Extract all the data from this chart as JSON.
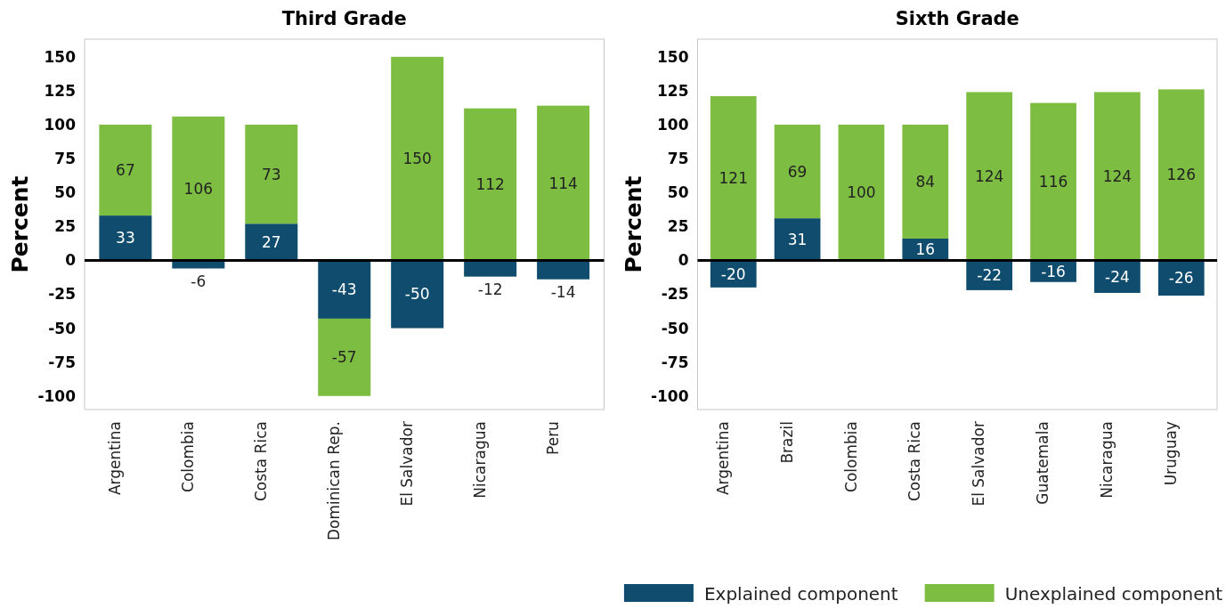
{
  "chart_data": [
    {
      "type": "bar",
      "title": "Third Grade",
      "ylabel": "Percent",
      "stacked": true,
      "data_labels": true,
      "categories": [
        "Argentina",
        "Colombia",
        "Costa Rica",
        "Dominican Rep.",
        "El Salvador",
        "Nicaragua",
        "Peru"
      ],
      "series": [
        {
          "color": "#0f4c6e",
          "values": [
            33,
            -6,
            27,
            -43,
            -50,
            -12,
            -14
          ]
        },
        {
          "color": "#7dbd42",
          "values": [
            67,
            106,
            73,
            -57,
            150,
            112,
            114
          ]
        }
      ],
      "ylim": [
        -110,
        163
      ],
      "yticks": [
        -100,
        -75,
        -50,
        -25,
        0,
        25,
        50,
        75,
        100,
        125,
        150
      ]
    },
    {
      "type": "bar",
      "title": "Sixth Grade",
      "ylabel": "Percent",
      "stacked": true,
      "data_labels": true,
      "legend": "bottom",
      "categories": [
        "Argentina",
        "Brazil",
        "Colombia",
        "Costa Rica",
        "El Salvador",
        "Guatemala",
        "Nicaragua",
        "Uruguay"
      ],
      "series": [
        {
          "name": "Explained component",
          "color": "#0f4c6e",
          "values": [
            -20,
            31,
            null,
            16,
            -22,
            -16,
            -24,
            -26
          ]
        },
        {
          "name": "Unexplained component",
          "color": "#7dbd42",
          "values": [
            121,
            69,
            100,
            84,
            124,
            116,
            124,
            126
          ]
        }
      ],
      "ylim": [
        -110,
        163
      ],
      "yticks": [
        -100,
        -75,
        -50,
        -25,
        0,
        25,
        50,
        75,
        100,
        125,
        150
      ]
    }
  ]
}
